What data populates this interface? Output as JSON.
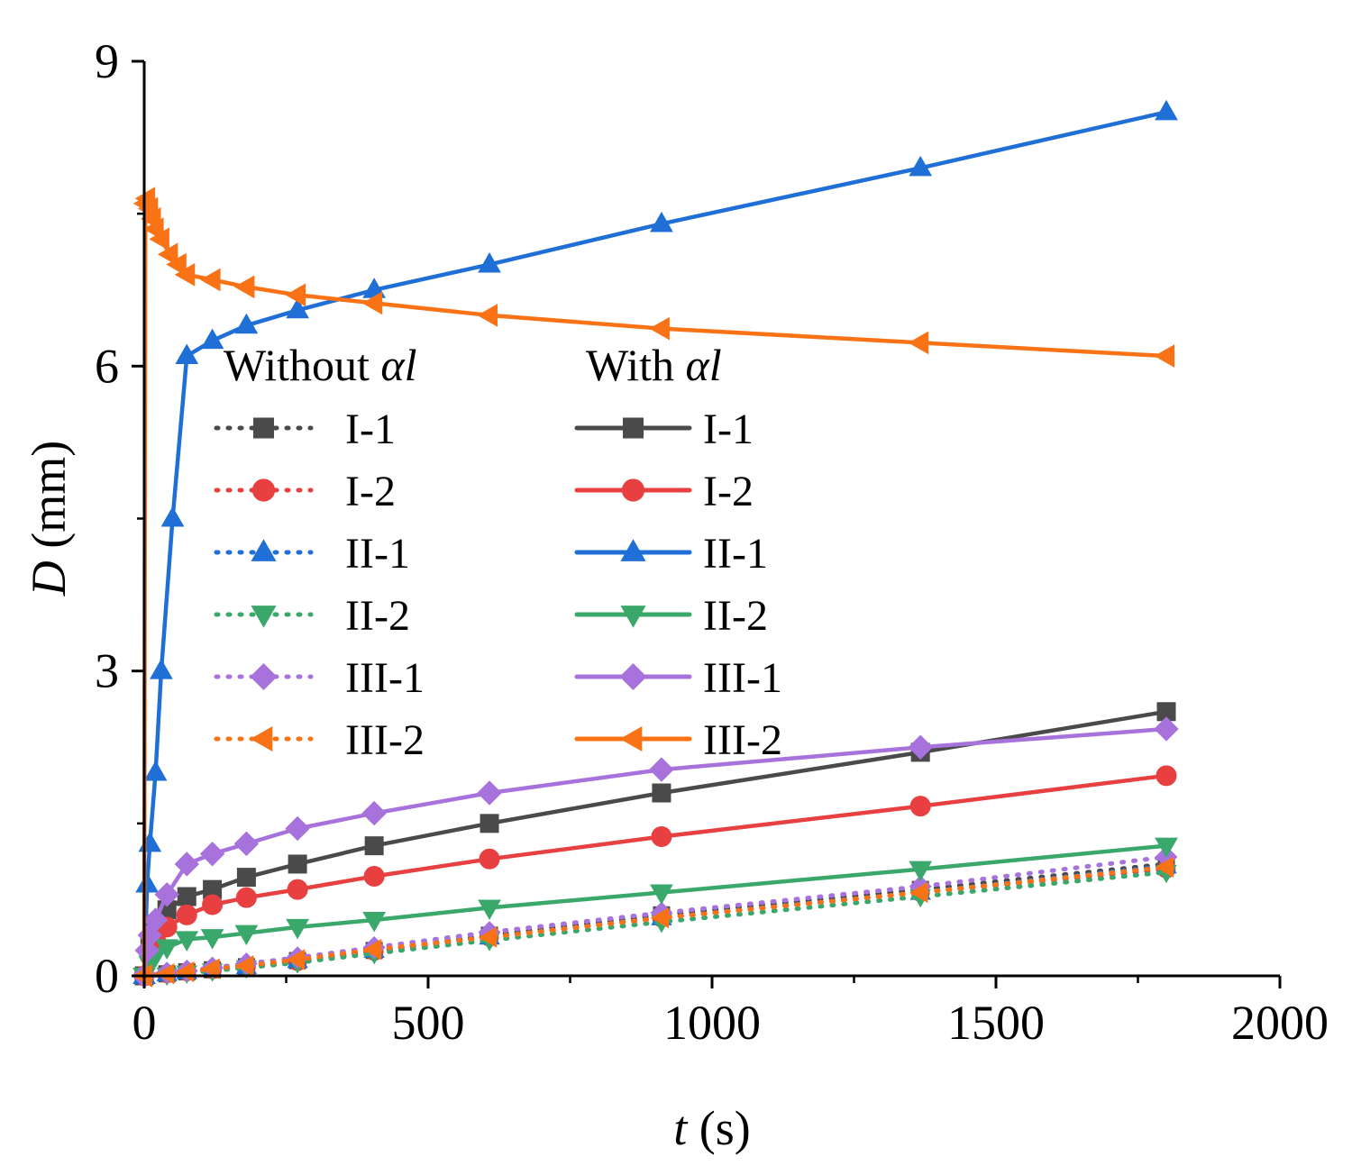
{
  "chart_data": {
    "type": "line",
    "xlabel": {
      "var": "t",
      "unit": " (s)"
    },
    "ylabel": {
      "var": "D",
      "unit": " (mm)"
    },
    "xlim": [
      0,
      2000
    ],
    "ylim": [
      0,
      9
    ],
    "xticks": [
      "0",
      "500",
      "1000",
      "1500",
      "2000"
    ],
    "yticks": [
      "0",
      "3",
      "6",
      "9"
    ],
    "xtick_values": [
      0,
      500,
      1000,
      1500,
      2000
    ],
    "ytick_values": [
      0,
      3,
      6,
      9
    ],
    "legend": {
      "placement": "center",
      "group_without": {
        "prefix": "Without ",
        "symbol": "αl"
      },
      "group_with": {
        "prefix": "With ",
        "symbol": "αl"
      }
    },
    "series": [
      {
        "name": "I-1",
        "group": "with",
        "style": "solid",
        "marker": "square",
        "color": "#4a4a4a",
        "x": [
          0,
          10,
          20,
          40,
          75,
          120,
          180,
          270,
          405,
          608,
          911,
          1367,
          1800
        ],
        "y": [
          0,
          0.3,
          0.5,
          0.65,
          0.78,
          0.85,
          0.97,
          1.1,
          1.28,
          1.5,
          1.8,
          2.2,
          2.6
        ]
      },
      {
        "name": "I-2",
        "group": "with",
        "style": "solid",
        "marker": "circle",
        "color": "#e84040",
        "x": [
          0,
          10,
          20,
          40,
          75,
          120,
          180,
          270,
          405,
          608,
          911,
          1367,
          1800
        ],
        "y": [
          0,
          0.2,
          0.35,
          0.48,
          0.6,
          0.7,
          0.77,
          0.85,
          0.98,
          1.15,
          1.37,
          1.67,
          1.97
        ]
      },
      {
        "name": "II-1",
        "group": "with",
        "style": "solid",
        "marker": "triangle-up",
        "color": "#1f6fd6",
        "x": [
          0,
          5,
          10,
          20,
          30,
          50,
          75,
          120,
          180,
          270,
          405,
          608,
          911,
          1367,
          1800
        ],
        "y": [
          0,
          0.9,
          1.3,
          2.0,
          3.0,
          4.5,
          6.1,
          6.25,
          6.4,
          6.55,
          6.75,
          7.0,
          7.4,
          7.95,
          8.5
        ]
      },
      {
        "name": "II-2",
        "group": "with",
        "style": "solid",
        "marker": "triangle-down",
        "color": "#3aa86b",
        "x": [
          0,
          10,
          20,
          40,
          75,
          120,
          180,
          270,
          405,
          608,
          911,
          1367,
          1800
        ],
        "y": [
          0,
          0.12,
          0.2,
          0.28,
          0.36,
          0.38,
          0.42,
          0.48,
          0.55,
          0.67,
          0.82,
          1.05,
          1.28
        ]
      },
      {
        "name": "III-1",
        "group": "with",
        "style": "solid",
        "marker": "diamond",
        "color": "#a872dc",
        "x": [
          0,
          5,
          10,
          20,
          40,
          75,
          120,
          180,
          270,
          405,
          608,
          911,
          1367,
          1800
        ],
        "y": [
          0,
          0.25,
          0.4,
          0.55,
          0.8,
          1.1,
          1.2,
          1.3,
          1.45,
          1.6,
          1.8,
          2.03,
          2.25,
          2.43
        ]
      },
      {
        "name": "III-2",
        "group": "with",
        "style": "solid",
        "marker": "triangle-left",
        "color": "#f97316",
        "x": [
          0,
          2,
          5,
          10,
          15,
          20,
          30,
          45,
          60,
          75,
          120,
          180,
          270,
          405,
          608,
          911,
          1367,
          1800
        ],
        "y": [
          0,
          7.6,
          7.65,
          7.55,
          7.45,
          7.35,
          7.25,
          7.1,
          7.0,
          6.9,
          6.85,
          6.78,
          6.7,
          6.62,
          6.5,
          6.37,
          6.23,
          6.1
        ]
      },
      {
        "name": "I-1",
        "group": "without",
        "style": "dotted",
        "marker": "square",
        "color": "#4a4a4a",
        "x": [
          0,
          40,
          75,
          120,
          180,
          270,
          405,
          608,
          911,
          1367,
          1800
        ],
        "y": [
          0,
          0.02,
          0.04,
          0.06,
          0.09,
          0.15,
          0.25,
          0.4,
          0.6,
          0.85,
          1.1
        ]
      },
      {
        "name": "I-2",
        "group": "without",
        "style": "dotted",
        "marker": "circle",
        "color": "#e84040",
        "x": [
          0,
          40,
          75,
          120,
          180,
          270,
          405,
          608,
          911,
          1367,
          1800
        ],
        "y": [
          0,
          0.02,
          0.04,
          0.06,
          0.09,
          0.14,
          0.24,
          0.38,
          0.57,
          0.82,
          1.05
        ]
      },
      {
        "name": "II-1",
        "group": "without",
        "style": "dotted",
        "marker": "triangle-up",
        "color": "#1f6fd6",
        "x": [
          0,
          40,
          75,
          120,
          180,
          270,
          405,
          608,
          911,
          1367,
          1800
        ],
        "y": [
          0,
          0.02,
          0.04,
          0.06,
          0.09,
          0.15,
          0.25,
          0.38,
          0.57,
          0.82,
          1.08
        ]
      },
      {
        "name": "II-2",
        "group": "without",
        "style": "dotted",
        "marker": "triangle-down",
        "color": "#3aa86b",
        "x": [
          0,
          40,
          75,
          120,
          180,
          270,
          405,
          608,
          911,
          1367,
          1800
        ],
        "y": [
          0,
          0.01,
          0.03,
          0.05,
          0.08,
          0.13,
          0.22,
          0.35,
          0.53,
          0.78,
          1.02
        ]
      },
      {
        "name": "III-1",
        "group": "without",
        "style": "dotted",
        "marker": "diamond",
        "color": "#a872dc",
        "x": [
          0,
          40,
          75,
          120,
          180,
          270,
          405,
          608,
          911,
          1367,
          1800
        ],
        "y": [
          0,
          0.03,
          0.05,
          0.08,
          0.12,
          0.18,
          0.28,
          0.43,
          0.62,
          0.88,
          1.17
        ]
      },
      {
        "name": "III-2",
        "group": "without",
        "style": "dotted",
        "marker": "triangle-left",
        "color": "#f97316",
        "x": [
          0,
          40,
          75,
          120,
          180,
          270,
          405,
          608,
          911,
          1367,
          1800
        ],
        "y": [
          0,
          0.02,
          0.04,
          0.07,
          0.1,
          0.16,
          0.26,
          0.38,
          0.57,
          0.82,
          1.07
        ]
      }
    ]
  }
}
